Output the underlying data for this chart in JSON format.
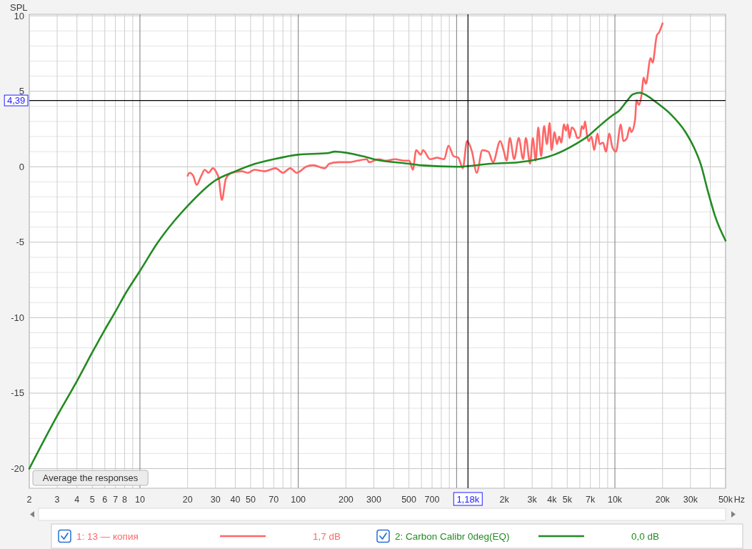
{
  "chart_data": {
    "type": "line",
    "ylabel": "SPL",
    "xlabel": "Hz",
    "log": "x",
    "xlim": [
      2,
      50000
    ],
    "ylim": [
      -21.3,
      10.1
    ],
    "xticks": [
      2,
      3,
      4,
      5,
      6,
      7,
      8,
      {
        "value": 9,
        "label": null
      },
      10,
      20,
      30,
      40,
      50,
      {
        "value": 60,
        "label": null
      },
      70,
      {
        "value": 80,
        "label": null
      },
      {
        "value": 90,
        "label": null
      },
      100,
      200,
      300,
      {
        "value": 400,
        "label": null
      },
      500,
      {
        "value": 600,
        "label": null
      },
      700,
      {
        "value": 800,
        "label": null
      },
      {
        "value": 900,
        "label": null
      },
      {
        "value": 1000,
        "label": null
      },
      {
        "value": 2000,
        "label": "2k"
      },
      {
        "value": 3000,
        "label": "3k"
      },
      {
        "value": 4000,
        "label": "4k"
      },
      {
        "value": 5000,
        "label": "5k"
      },
      {
        "value": 6000,
        "label": null
      },
      {
        "value": 7000,
        "label": "7k"
      },
      {
        "value": 8000,
        "label": null
      },
      {
        "value": 9000,
        "label": null
      },
      {
        "value": 10000,
        "label": "10k"
      },
      {
        "value": 20000,
        "label": "20k"
      },
      {
        "value": 30000,
        "label": "30k"
      },
      {
        "value": 40000,
        "label": null
      },
      {
        "value": 50000,
        "label": "50k"
      }
    ],
    "yticks": [
      -20,
      {
        "value": -19,
        "label": null
      },
      {
        "value": -18,
        "label": null
      },
      {
        "value": -17,
        "label": null
      },
      {
        "value": -16,
        "label": null
      },
      -15,
      {
        "value": -14,
        "label": null
      },
      {
        "value": -13,
        "label": null
      },
      {
        "value": -12,
        "label": null
      },
      {
        "value": -11,
        "label": null
      },
      -10,
      {
        "value": -9,
        "label": null
      },
      {
        "value": -8,
        "label": null
      },
      {
        "value": -7,
        "label": null
      },
      {
        "value": -6,
        "label": null
      },
      -5,
      {
        "value": -4,
        "label": null
      },
      {
        "value": -3,
        "label": null
      },
      {
        "value": -2,
        "label": null
      },
      {
        "value": -1,
        "label": null
      },
      0,
      {
        "value": 1,
        "label": null
      },
      {
        "value": 2,
        "label": null
      },
      {
        "value": 3,
        "label": null
      },
      {
        "value": 4,
        "label": null
      },
      5,
      {
        "value": 6,
        "label": null
      },
      {
        "value": 7,
        "label": null
      },
      {
        "value": 8,
        "label": null
      },
      {
        "value": 9,
        "label": null
      },
      10
    ],
    "grid": true,
    "legend": "bottom",
    "line_style": "solid",
    "series": [
      {
        "name": "1: 13 — копия",
        "color": "#ff6666",
        "x": [
          20,
          20.6,
          21.7,
          22.8,
          24.4,
          25.7,
          27.1,
          28.9,
          30.5,
          31.5,
          32.9,
          34.9,
          38,
          44,
          48,
          53,
          61,
          72,
          80,
          89,
          98,
          112,
          124,
          147,
          157,
          181,
          207,
          237,
          271,
          280,
          322,
          357,
          408,
          468,
          503,
          529,
          556,
          594,
          614,
          680,
          752,
          835,
          888,
          957,
          1025,
          1095,
          1164,
          1251,
          1340,
          1455,
          1586,
          1700,
          1885,
          1980,
          2070,
          2170,
          2310,
          2470,
          2630,
          2740,
          2910,
          3030,
          3160,
          3280,
          3420,
          3570,
          3720,
          3870,
          3980,
          4160,
          4300,
          4450,
          4580,
          4770,
          4900,
          5040,
          5160,
          5340,
          5620,
          5780,
          6020,
          6180,
          6340,
          6480,
          6660,
          6830,
          7110,
          7400,
          7760,
          8020,
          8420,
          8760,
          9230,
          9630,
          10150,
          10900,
          11300,
          11900,
          12400,
          12700,
          13400,
          13700,
          14200,
          14700,
          15200,
          15700,
          16800,
          17300,
          18400,
          19000,
          20000
        ],
        "values": [
          -0.6,
          -0.4,
          -0.6,
          -1.2,
          -0.6,
          -0.2,
          -0.4,
          -0.1,
          -0.4,
          -0.8,
          -2.2,
          -0.8,
          -0.4,
          -0.3,
          -0.4,
          -0.2,
          -0.3,
          -0.1,
          -0.4,
          -0.1,
          -0.4,
          0,
          0.1,
          -0.1,
          0.2,
          0.3,
          0.3,
          0.4,
          0.5,
          0.3,
          0.5,
          0.4,
          0.5,
          0.4,
          0.4,
          -0.2,
          1.1,
          0.8,
          1.1,
          0.5,
          0.6,
          0.5,
          1.4,
          0.7,
          0.6,
          -0.1,
          1.7,
          1,
          -0.4,
          1.1,
          1,
          0.3,
          1.7,
          1.1,
          0.4,
          1.9,
          0.5,
          1.9,
          0.5,
          1.9,
          0.2,
          1.9,
          0.4,
          2.6,
          0.7,
          2.7,
          1.5,
          2.9,
          1.1,
          2.3,
          1.5,
          2,
          1.6,
          2.8,
          2.4,
          2.8,
          1.9,
          2.6,
          2.3,
          1.9,
          2,
          2.7,
          2.5,
          3,
          2.1,
          1.7,
          2,
          1.1,
          2.2,
          1.5,
          1.6,
          1,
          2.2,
          1.3,
          1,
          2.8,
          1.7,
          1.9,
          2.6,
          2.3,
          3.1,
          4.4,
          4.1,
          4.7,
          5.9,
          5.5,
          7.2,
          6.9,
          8.7,
          8.9,
          9.5
        ]
      },
      {
        "name": "2: Carbon Calibr 0deg(EQ)",
        "color": "#228b22",
        "x": [
          2,
          3,
          4,
          5,
          6,
          7,
          8,
          10,
          13,
          20,
          30,
          40,
          50,
          70,
          100,
          153,
          170,
          255,
          300,
          500,
          590,
          1000,
          1650,
          2470,
          2930,
          4140,
          5640,
          6890,
          7600,
          9630,
          10600,
          11800,
          13000,
          14400,
          16000,
          18600,
          22400,
          27900,
          31500,
          35000,
          38600,
          43000,
          50000
        ],
        "values": [
          -20,
          -16.5,
          -14.2,
          -12.3,
          -10.8,
          -9.6,
          -8.5,
          -6.9,
          -5,
          -2.6,
          -0.9,
          -0.3,
          0.1,
          0.5,
          0.8,
          0.9,
          1,
          0.7,
          0.5,
          0.2,
          0.1,
          0,
          0.2,
          0.3,
          0.4,
          0.8,
          1.5,
          2.1,
          2.5,
          3.4,
          3.7,
          4.3,
          4.8,
          4.9,
          4.7,
          4.2,
          3.5,
          2.3,
          1.3,
          0.1,
          -1.6,
          -3.3,
          -4.9
        ]
      }
    ],
    "ref_lines": [
      {
        "axis": "y",
        "value": 4.39,
        "label": "4,39",
        "color": "#000000"
      },
      {
        "axis": "x",
        "value": 1180,
        "label": "1,18k",
        "color": "#000000"
      }
    ],
    "annotations": [
      "1,7 dB",
      "0,0 dB",
      "Average the responses"
    ]
  }
}
